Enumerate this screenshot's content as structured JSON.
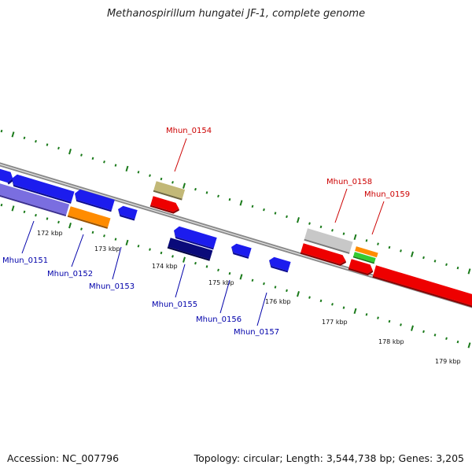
{
  "title": "Methanospirillum hungatei JF-1, complete genome",
  "footer": {
    "accession": "Accession: NC_007796",
    "summary": "Topology: circular; Length: 3,544,738 bp; Genes: 3,205"
  },
  "colors": {
    "backbone": "#8a8a8a",
    "tick": "#1a7a1a",
    "label_forward": "#cc0000",
    "label_reverse": "#0000aa"
  },
  "scale": {
    "labels": [
      "172 kbp",
      "173 kbp",
      "174 kbp",
      "175 kbp",
      "176 kbp",
      "177 kbp",
      "178 kbp",
      "179 kbp"
    ]
  },
  "genes": [
    {
      "name": "Mhun_0151",
      "color": "#1c1cee"
    },
    {
      "name": "Mhun_0152",
      "color": "#ff8c00"
    },
    {
      "name": "Mhun_0153",
      "color": "#1c1cee"
    },
    {
      "name": "Mhun_0154",
      "color": "#c2b877"
    },
    {
      "name": "Mhun_0155",
      "color": "#1c1cee"
    },
    {
      "name": "Mhun_0156",
      "color": "#1c1cee"
    },
    {
      "name": "Mhun_0157",
      "color": "#1c1cee"
    },
    {
      "name": "Mhun_0158",
      "color": "#c8c8c8"
    },
    {
      "name": "Mhun_0159",
      "color": "#ff8c00"
    }
  ]
}
